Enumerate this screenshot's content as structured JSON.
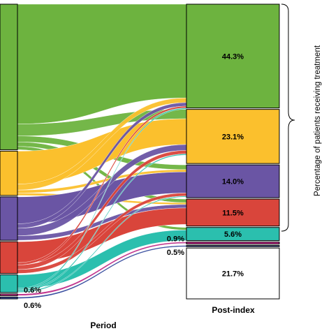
{
  "chart_data": {
    "type": "sankey",
    "title": "",
    "xlabel": "Period",
    "ylabel": "Percentage of patients receiving treatment",
    "columns": [
      "",
      "Post-index"
    ],
    "colors": {
      "green": "#6db33f",
      "yellow": "#fbc02d",
      "purple": "#6a55a4",
      "red": "#d9453b",
      "teal": "#2bbfae",
      "magenta": "#c2378f",
      "blue": "#3a4fa0",
      "white": "#ffffff"
    },
    "left_nodes": [
      {
        "color": "green",
        "value": 48.6
      },
      {
        "color": "yellow",
        "value": 14.8
      },
      {
        "color": "purple",
        "value": 14.5
      },
      {
        "color": "red",
        "value": 10.6
      },
      {
        "color": "teal",
        "value": 5.9
      },
      {
        "color": "magenta",
        "value": 0.6
      },
      {
        "color": "blue",
        "value": 0.6
      }
    ],
    "left_labels": [
      "0.6%",
      "0.6%"
    ],
    "right_nodes": [
      {
        "color": "green",
        "value": 44.3,
        "label": "44.3%"
      },
      {
        "color": "yellow",
        "value": 23.1,
        "label": "23.1%"
      },
      {
        "color": "purple",
        "value": 14.0,
        "label": "14.0%"
      },
      {
        "color": "red",
        "value": 11.5,
        "label": "11.5%"
      },
      {
        "color": "teal",
        "value": 5.6,
        "label": "5.6%"
      },
      {
        "color": "magenta",
        "value": 0.9,
        "label": "0.9%"
      },
      {
        "color": "blue",
        "value": 0.5,
        "label": "0.5%"
      },
      {
        "color": "white",
        "value": 21.7,
        "label": "21.7%"
      }
    ],
    "flows": [
      {
        "from": "green",
        "to": "green",
        "value": 40
      },
      {
        "from": "green",
        "to": "yellow",
        "value": 4
      },
      {
        "from": "green",
        "to": "purple",
        "value": 2
      },
      {
        "from": "green",
        "to": "red",
        "value": 1.5
      },
      {
        "from": "green",
        "to": "teal",
        "value": 1.1
      },
      {
        "from": "yellow",
        "to": "yellow",
        "value": 11
      },
      {
        "from": "yellow",
        "to": "green",
        "value": 2
      },
      {
        "from": "yellow",
        "to": "purple",
        "value": 1
      },
      {
        "from": "yellow",
        "to": "red",
        "value": 0.8
      },
      {
        "from": "purple",
        "to": "purple",
        "value": 9
      },
      {
        "from": "purple",
        "to": "green",
        "value": 1.5
      },
      {
        "from": "purple",
        "to": "yellow",
        "value": 2.5
      },
      {
        "from": "purple",
        "to": "red",
        "value": 1.5
      },
      {
        "from": "red",
        "to": "red",
        "value": 7
      },
      {
        "from": "red",
        "to": "green",
        "value": 0.8
      },
      {
        "from": "red",
        "to": "yellow",
        "value": 1.5
      },
      {
        "from": "red",
        "to": "purple",
        "value": 1.3
      },
      {
        "from": "teal",
        "to": "teal",
        "value": 4.5
      },
      {
        "from": "teal",
        "to": "green",
        "value": 0.5
      },
      {
        "from": "teal",
        "to": "yellow",
        "value": 0.5
      },
      {
        "from": "teal",
        "to": "purple",
        "value": 0.4
      },
      {
        "from": "magenta",
        "to": "magenta",
        "value": 0.6
      },
      {
        "from": "blue",
        "to": "blue",
        "value": 0.5
      }
    ]
  }
}
